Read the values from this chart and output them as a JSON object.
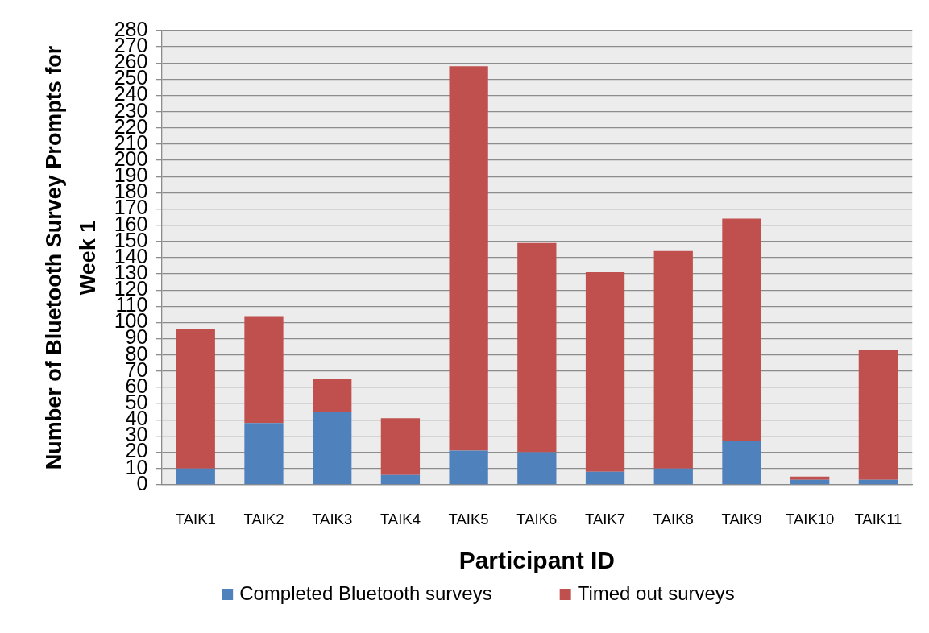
{
  "chart_data": {
    "type": "bar",
    "xlabel": "Participant ID",
    "ylabel": "Number of Bluetooth Survey Prompts for Week 1",
    "categories": [
      "TAIK1",
      "TAIK2",
      "TAIK3",
      "TAIK4",
      "TAIK5",
      "TAIK6",
      "TAIK7",
      "TAIK8",
      "TAIK9",
      "TAIK10",
      "TAIK11"
    ],
    "series": [
      {
        "name": "Completed Bluetooth surveys",
        "color": "#4f81bd",
        "values": [
          10,
          38,
          45,
          6,
          21,
          20,
          8,
          10,
          27,
          3,
          3
        ]
      },
      {
        "name": "Timed out surveys",
        "color": "#c0504d",
        "values": [
          86,
          66,
          20,
          35,
          237,
          129,
          123,
          134,
          137,
          2,
          80
        ]
      }
    ],
    "stacked": true,
    "ylim": [
      0,
      280
    ],
    "yticks": [
      0,
      10,
      20,
      30,
      40,
      50,
      60,
      70,
      80,
      90,
      100,
      110,
      120,
      130,
      140,
      150,
      160,
      170,
      180,
      190,
      200,
      210,
      220,
      230,
      240,
      250,
      260,
      270,
      280
    ],
    "grid": "y",
    "legend": "bottom"
  }
}
